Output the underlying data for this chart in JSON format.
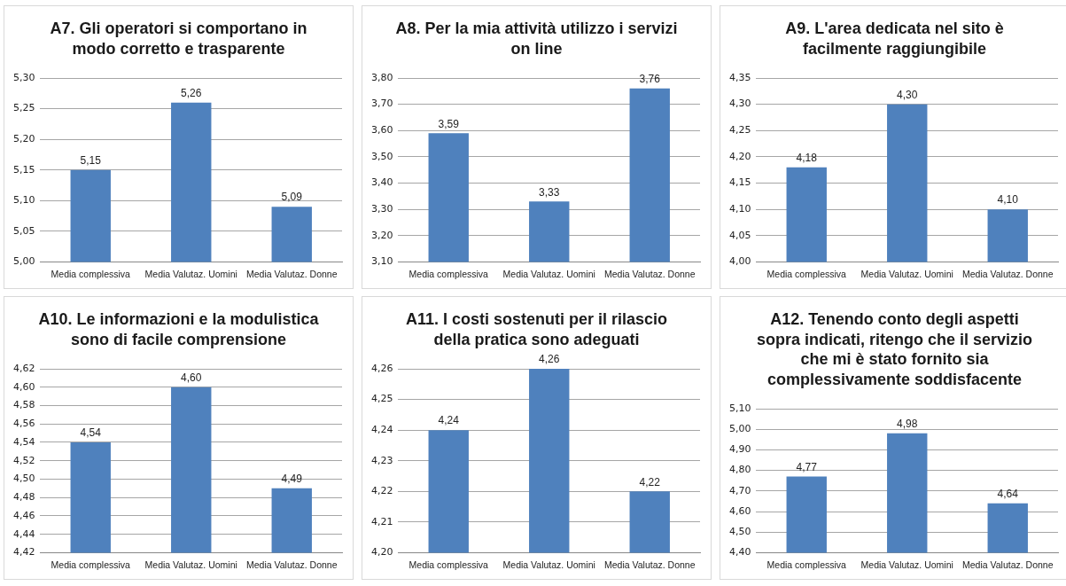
{
  "chart_data": [
    {
      "type": "bar",
      "title": "A7. Gli operatori si comportano in modo corretto e trasparente",
      "categories": [
        "Media complessiva",
        "Media Valutaz. Uomini",
        "Media Valutaz. Donne"
      ],
      "values": [
        5.15,
        5.26,
        5.09
      ],
      "value_labels": [
        "5,15",
        "5,26",
        "5,09"
      ],
      "color": "#4f81bd",
      "ylim": [
        5.0,
        5.3
      ],
      "yticks": [
        {
          "value": 5.0,
          "label": "5,00"
        },
        {
          "value": 5.05,
          "label": "5,05"
        },
        {
          "value": 5.1,
          "label": "5,10"
        },
        {
          "value": 5.15,
          "label": "5,15"
        },
        {
          "value": 5.2,
          "label": "5,20"
        },
        {
          "value": 5.25,
          "label": "5,25"
        },
        {
          "value": 5.3,
          "label": "5,30"
        }
      ],
      "grid": "y",
      "legend": false
    },
    {
      "type": "bar",
      "title": "A8. Per la mia attività utilizzo i servizi on line",
      "categories": [
        "Media complessiva",
        "Media Valutaz. Uomini",
        "Media Valutaz. Donne"
      ],
      "values": [
        3.59,
        3.33,
        3.76
      ],
      "value_labels": [
        "3,59",
        "3,33",
        "3,76"
      ],
      "color": "#4f81bd",
      "ylim": [
        3.1,
        3.8
      ],
      "yticks": [
        {
          "value": 3.1,
          "label": "3,10"
        },
        {
          "value": 3.2,
          "label": "3,20"
        },
        {
          "value": 3.3,
          "label": "3,30"
        },
        {
          "value": 3.4,
          "label": "3,40"
        },
        {
          "value": 3.5,
          "label": "3,50"
        },
        {
          "value": 3.6,
          "label": "3,60"
        },
        {
          "value": 3.7,
          "label": "3,70"
        },
        {
          "value": 3.8,
          "label": "3,80"
        }
      ],
      "grid": "y",
      "legend": false
    },
    {
      "type": "bar",
      "title": "A9. L'area dedicata nel sito è facilmente raggiungibile",
      "categories": [
        "Media complessiva",
        "Media Valutaz. Uomini",
        "Media Valutaz. Donne"
      ],
      "values": [
        4.18,
        4.3,
        4.1
      ],
      "value_labels": [
        "4,18",
        "4,30",
        "4,10"
      ],
      "color": "#4f81bd",
      "ylim": [
        4.0,
        4.35
      ],
      "yticks": [
        {
          "value": 4.0,
          "label": "4,00"
        },
        {
          "value": 4.05,
          "label": "4,05"
        },
        {
          "value": 4.1,
          "label": "4,10"
        },
        {
          "value": 4.15,
          "label": "4,15"
        },
        {
          "value": 4.2,
          "label": "4,20"
        },
        {
          "value": 4.25,
          "label": "4,25"
        },
        {
          "value": 4.3,
          "label": "4,30"
        },
        {
          "value": 4.35,
          "label": "4,35"
        }
      ],
      "grid": "y",
      "legend": false
    },
    {
      "type": "bar",
      "title": "A10. Le informazioni e la modulistica sono di facile comprensione",
      "categories": [
        "Media complessiva",
        "Media Valutaz. Uomini",
        "Media Valutaz. Donne"
      ],
      "values": [
        4.54,
        4.6,
        4.49
      ],
      "value_labels": [
        "4,54",
        "4,60",
        "4,49"
      ],
      "color": "#4f81bd",
      "ylim": [
        4.42,
        4.62
      ],
      "yticks": [
        {
          "value": 4.42,
          "label": "4,42"
        },
        {
          "value": 4.44,
          "label": "4,44"
        },
        {
          "value": 4.46,
          "label": "4,46"
        },
        {
          "value": 4.48,
          "label": "4,48"
        },
        {
          "value": 4.5,
          "label": "4,50"
        },
        {
          "value": 4.52,
          "label": "4,52"
        },
        {
          "value": 4.54,
          "label": "4,54"
        },
        {
          "value": 4.56,
          "label": "4,56"
        },
        {
          "value": 4.58,
          "label": "4,58"
        },
        {
          "value": 4.6,
          "label": "4,60"
        },
        {
          "value": 4.62,
          "label": "4,62"
        }
      ],
      "grid": "y",
      "legend": false
    },
    {
      "type": "bar",
      "title": "A11. I costi sostenuti per il rilascio della pratica sono adeguati",
      "categories": [
        "Media complessiva",
        "Media Valutaz. Uomini",
        "Media Valutaz. Donne"
      ],
      "values": [
        4.24,
        4.26,
        4.22
      ],
      "value_labels": [
        "4,24",
        "4,26",
        "4,22"
      ],
      "color": "#4f81bd",
      "ylim": [
        4.2,
        4.26
      ],
      "yticks": [
        {
          "value": 4.2,
          "label": "4,20"
        },
        {
          "value": 4.21,
          "label": "4,21"
        },
        {
          "value": 4.22,
          "label": "4,22"
        },
        {
          "value": 4.23,
          "label": "4,23"
        },
        {
          "value": 4.24,
          "label": "4,24"
        },
        {
          "value": 4.25,
          "label": "4,25"
        },
        {
          "value": 4.26,
          "label": "4,26"
        }
      ],
      "grid": "y",
      "legend": false
    },
    {
      "type": "bar",
      "title": "A12. Tenendo conto degli aspetti sopra indicati, ritengo che il servizio che mi è stato fornito sia complessivamente soddisfacente",
      "categories": [
        "Media complessiva",
        "Media Valutaz. Uomini",
        "Media Valutaz. Donne"
      ],
      "values": [
        4.77,
        4.98,
        4.64
      ],
      "value_labels": [
        "4,77",
        "4,98",
        "4,64"
      ],
      "color": "#4f81bd",
      "ylim": [
        4.4,
        5.1
      ],
      "yticks": [
        {
          "value": 4.4,
          "label": "4,40"
        },
        {
          "value": 4.5,
          "label": "4,50"
        },
        {
          "value": 4.6,
          "label": "4,60"
        },
        {
          "value": 4.7,
          "label": "4,70"
        },
        {
          "value": 4.8,
          "label": "4,80"
        },
        {
          "value": 4.9,
          "label": "4,90"
        },
        {
          "value": 5.0,
          "label": "5,00"
        },
        {
          "value": 5.1,
          "label": "5,10"
        }
      ],
      "grid": "y",
      "legend": false
    }
  ]
}
